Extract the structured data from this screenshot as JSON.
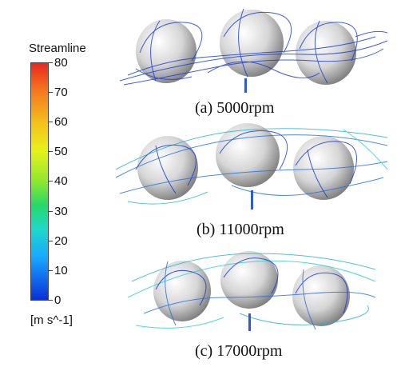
{
  "legend": {
    "title": "Streamline",
    "ticks": [
      "80",
      "70",
      "60",
      "50",
      "40",
      "30",
      "20",
      "10",
      "0"
    ],
    "unit": "[m s^-1]",
    "colors": [
      "#d7191c",
      "#f46d43",
      "#fdae61",
      "#ffff33",
      "#a6d96a",
      "#33cc33",
      "#22d3c6",
      "#1aa7ff",
      "#0022cc"
    ]
  },
  "panels": [
    {
      "caption": "(a) 5000rpm",
      "stream_color": "#1038d8"
    },
    {
      "caption": "(b) 11000rpm",
      "stream_color": "#1e6fe8"
    },
    {
      "caption": "(c) 17000rpm",
      "stream_color": "#1fb5c8"
    }
  ]
}
